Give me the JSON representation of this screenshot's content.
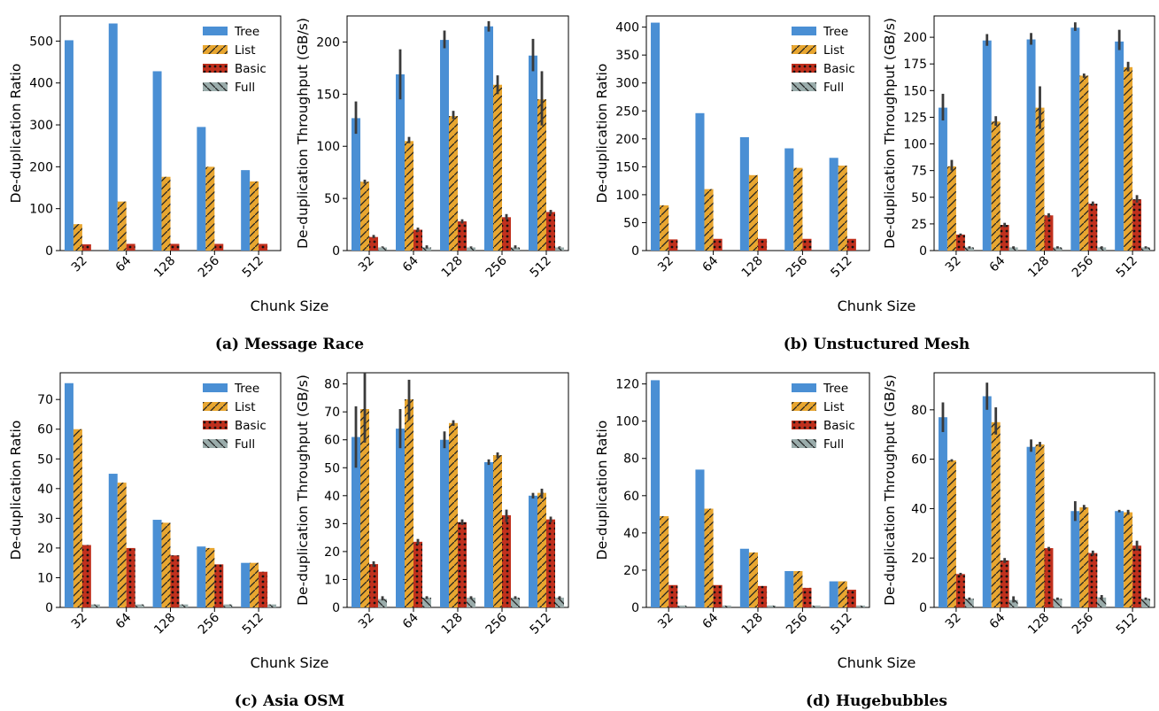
{
  "figure": {
    "shared_xlabel": "Chunk Size",
    "ratio_ylabel": "De-duplication Ratio",
    "throughput_ylabel": "De-duplication Throughput (GB/s)",
    "legend_labels": [
      "Tree",
      "List",
      "Basic",
      "Full"
    ],
    "colors": {
      "Tree": "#4a8fd4",
      "List": "#e8a630",
      "Basic": "#c0301d",
      "Full": "#9aacab"
    }
  },
  "panels": [
    {
      "caption": "(a) Message Race"
    },
    {
      "caption": "(b) Unstuctured Mesh"
    },
    {
      "caption": "(c) Asia OSM"
    },
    {
      "caption": "(d) Hugebubbles"
    }
  ],
  "chart_data": [
    {
      "panel": "(a) Message Race",
      "type": "bar",
      "xlabel": "",
      "ylabel": "De-duplication Ratio",
      "categories": [
        "32",
        "64",
        "128",
        "256",
        "512"
      ],
      "ylim": [
        0,
        560
      ],
      "yticks": [
        0,
        100,
        200,
        300,
        400,
        500
      ],
      "legend": "top-right",
      "series": [
        {
          "name": "Tree",
          "values": [
            502,
            542,
            428,
            295,
            192
          ]
        },
        {
          "name": "List",
          "values": [
            63,
            117,
            176,
            200,
            165
          ]
        },
        {
          "name": "Basic",
          "values": [
            15,
            16,
            16,
            16,
            16
          ]
        },
        {
          "name": "Full",
          "values": [
            0,
            0,
            0,
            0,
            0
          ]
        }
      ]
    },
    {
      "panel": "(a) Message Race",
      "type": "bar",
      "xlabel": "Chunk Size",
      "ylabel": "De-duplication Throughput (GB/s)",
      "categories": [
        "32",
        "64",
        "128",
        "256",
        "512"
      ],
      "ylim": [
        0,
        225
      ],
      "yticks": [
        0,
        50,
        100,
        150,
        200
      ],
      "series": [
        {
          "name": "Tree",
          "values": [
            127,
            169,
            202,
            215,
            187
          ],
          "err_low": [
            112,
            145,
            194,
            210,
            172
          ],
          "err_high": [
            143,
            193,
            211,
            220,
            203
          ]
        },
        {
          "name": "List",
          "values": [
            66,
            105,
            129,
            159,
            145
          ],
          "err_low": [
            64,
            103,
            126,
            150,
            120
          ],
          "err_high": [
            68,
            109,
            134,
            168,
            172
          ]
        },
        {
          "name": "Basic",
          "values": [
            13,
            20,
            28,
            32,
            37
          ],
          "err_low": [
            12,
            18,
            26,
            30,
            35
          ],
          "err_high": [
            15,
            22,
            30,
            35,
            39
          ]
        },
        {
          "name": "Full",
          "values": [
            3,
            3,
            3,
            3,
            3
          ],
          "err_low": [
            3,
            2,
            3,
            2,
            3
          ],
          "err_high": [
            4,
            5,
            4,
            5,
            4
          ]
        }
      ]
    },
    {
      "panel": "(b) Unstuctured Mesh",
      "type": "bar",
      "xlabel": "",
      "ylabel": "De-duplication Ratio",
      "categories": [
        "32",
        "64",
        "128",
        "256",
        "512"
      ],
      "ylim": [
        0,
        420
      ],
      "yticks": [
        0,
        50,
        100,
        150,
        200,
        250,
        300,
        350,
        400
      ],
      "legend": "top-right",
      "series": [
        {
          "name": "Tree",
          "values": [
            408,
            246,
            203,
            183,
            166
          ]
        },
        {
          "name": "List",
          "values": [
            81,
            110,
            135,
            148,
            152
          ]
        },
        {
          "name": "Basic",
          "values": [
            20,
            21,
            21,
            21,
            21
          ]
        },
        {
          "name": "Full",
          "values": [
            0,
            0,
            0,
            0,
            0
          ]
        }
      ]
    },
    {
      "panel": "(b) Unstuctured Mesh",
      "type": "bar",
      "xlabel": "Chunk Size",
      "ylabel": "De-duplication Throughput (GB/s)",
      "categories": [
        "32",
        "64",
        "128",
        "256",
        "512"
      ],
      "ylim": [
        0,
        220
      ],
      "yticks": [
        0,
        25,
        50,
        75,
        100,
        125,
        150,
        175,
        200
      ],
      "series": [
        {
          "name": "Tree",
          "values": [
            134,
            197,
            198,
            209,
            196
          ],
          "err_low": [
            122,
            192,
            193,
            206,
            188
          ],
          "err_high": [
            147,
            203,
            204,
            214,
            207
          ]
        },
        {
          "name": "List",
          "values": [
            79,
            121,
            134,
            164,
            172
          ],
          "err_low": [
            75,
            117,
            114,
            162,
            168
          ],
          "err_high": [
            85,
            126,
            154,
            166,
            177
          ]
        },
        {
          "name": "Basic",
          "values": [
            15,
            24,
            33,
            44,
            48
          ],
          "err_low": [
            14,
            22,
            31,
            42,
            45
          ],
          "err_high": [
            16,
            26,
            35,
            46,
            52
          ]
        },
        {
          "name": "Full",
          "values": [
            3,
            3,
            3,
            3,
            3
          ],
          "err_low": [
            2,
            2,
            2,
            2,
            2
          ],
          "err_high": [
            4,
            4,
            4,
            4,
            4
          ]
        }
      ]
    },
    {
      "panel": "(c) Asia OSM",
      "type": "bar",
      "xlabel": "",
      "ylabel": "De-duplication Ratio",
      "categories": [
        "32",
        "64",
        "128",
        "256",
        "512"
      ],
      "ylim": [
        0,
        79
      ],
      "yticks": [
        0,
        10,
        20,
        30,
        40,
        50,
        60,
        70
      ],
      "legend": "top-right",
      "series": [
        {
          "name": "Tree",
          "values": [
            75.5,
            45,
            29.5,
            20.5,
            15
          ]
        },
        {
          "name": "List",
          "values": [
            60,
            42,
            28.5,
            20,
            15
          ]
        },
        {
          "name": "Basic",
          "values": [
            21,
            20,
            17.5,
            14.5,
            12
          ]
        },
        {
          "name": "Full",
          "values": [
            1,
            1,
            1,
            1,
            1
          ]
        }
      ]
    },
    {
      "panel": "(c) Asia OSM",
      "type": "bar",
      "xlabel": "Chunk Size",
      "ylabel": "De-duplication Throughput (GB/s)",
      "categories": [
        "32",
        "64",
        "128",
        "256",
        "512"
      ],
      "ylim": [
        0,
        84
      ],
      "yticks": [
        0,
        10,
        20,
        30,
        40,
        50,
        60,
        70,
        80
      ],
      "series": [
        {
          "name": "Tree",
          "values": [
            61,
            64,
            60,
            52,
            40
          ],
          "err_low": [
            50,
            57,
            57,
            51,
            39
          ],
          "err_high": [
            72,
            71,
            63,
            53,
            41
          ]
        },
        {
          "name": "List",
          "values": [
            71,
            74.5,
            66,
            54.5,
            41
          ],
          "err_low": [
            59,
            67,
            65,
            53.5,
            39
          ],
          "err_high": [
            84,
            81.5,
            67,
            55.5,
            42.5
          ]
        },
        {
          "name": "Basic",
          "values": [
            15.5,
            23.5,
            30.5,
            33,
            31.5
          ],
          "err_low": [
            14.5,
            22.5,
            29.5,
            30.5,
            30.5
          ],
          "err_high": [
            16.5,
            24.5,
            31.5,
            35,
            32.5
          ]
        },
        {
          "name": "Full",
          "values": [
            3,
            3.5,
            3.5,
            3.5,
            3.5
          ],
          "err_low": [
            2.5,
            3,
            3,
            3,
            3
          ],
          "err_high": [
            4,
            4,
            4,
            4,
            4
          ]
        }
      ]
    },
    {
      "panel": "(d) Hugebubbles",
      "type": "bar",
      "xlabel": "",
      "ylabel": "De-duplication Ratio",
      "categories": [
        "32",
        "64",
        "128",
        "256",
        "512"
      ],
      "ylim": [
        0,
        126
      ],
      "yticks": [
        0,
        20,
        40,
        60,
        80,
        100,
        120
      ],
      "legend": "top-right",
      "series": [
        {
          "name": "Tree",
          "values": [
            122,
            74,
            31.5,
            19.5,
            14
          ]
        },
        {
          "name": "List",
          "values": [
            49,
            53,
            29.5,
            19.5,
            14
          ]
        },
        {
          "name": "Basic",
          "values": [
            12,
            12,
            11.5,
            10.5,
            9.5
          ]
        },
        {
          "name": "Full",
          "values": [
            1,
            1,
            1,
            1,
            1
          ]
        }
      ]
    },
    {
      "panel": "(d) Hugebubbles",
      "type": "bar",
      "xlabel": "Chunk Size",
      "ylabel": "De-duplication Throughput (GB/s)",
      "categories": [
        "32",
        "64",
        "128",
        "256",
        "512"
      ],
      "ylim": [
        0,
        95
      ],
      "yticks": [
        0,
        20,
        40,
        60,
        80
      ],
      "series": [
        {
          "name": "Tree",
          "values": [
            77,
            85.5,
            65,
            39,
            39
          ],
          "err_low": [
            71,
            80,
            63,
            35,
            38.5
          ],
          "err_high": [
            83,
            91,
            68,
            43,
            39.5
          ]
        },
        {
          "name": "List",
          "values": [
            59.5,
            75,
            66,
            40.5,
            38.5
          ],
          "err_low": [
            59,
            70,
            65,
            39.5,
            37.5
          ],
          "err_high": [
            60,
            81,
            67,
            41.5,
            39.5
          ]
        },
        {
          "name": "Basic",
          "values": [
            13.5,
            19,
            24,
            22,
            25
          ],
          "err_low": [
            13,
            18,
            23.5,
            21,
            23
          ],
          "err_high": [
            14,
            20,
            24.5,
            23,
            27
          ]
        },
        {
          "name": "Full",
          "values": [
            3.5,
            3,
            3.5,
            4,
            3.5
          ],
          "err_low": [
            3,
            2,
            3,
            3,
            3
          ],
          "err_high": [
            4,
            4.5,
            4,
            5,
            4
          ]
        }
      ]
    }
  ]
}
